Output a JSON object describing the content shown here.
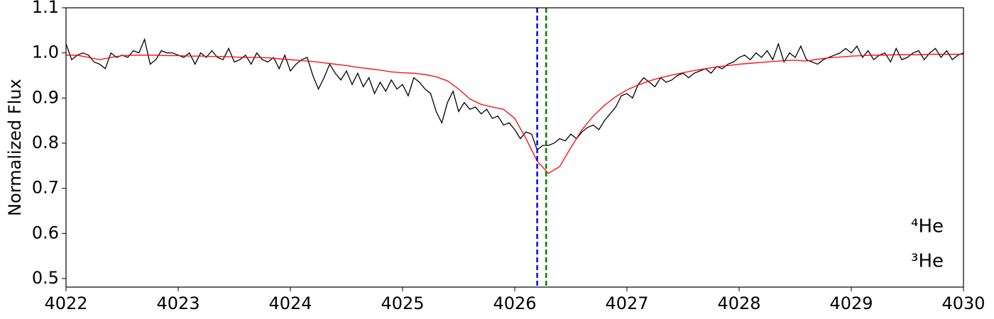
{
  "chart_data": {
    "type": "line",
    "ylabel": "Normalized Flux",
    "xlim": [
      4022,
      4030
    ],
    "ylim": [
      0.481,
      1.1
    ],
    "xticks": [
      4022,
      4023,
      4024,
      4025,
      4026,
      4027,
      4028,
      4029,
      4030
    ],
    "yticks": [
      0.5,
      0.6,
      0.7,
      0.8,
      0.9,
      {
        "value": 1,
        "label": "1.0"
      },
      1.1
    ],
    "grid": false,
    "series": [
      {
        "color": "#000000",
        "x": [
          4022,
          4022.05,
          4022.1,
          4022.15,
          4022.2,
          4022.25,
          4022.3,
          4022.35,
          4022.4,
          4022.45,
          4022.5,
          4022.55,
          4022.6,
          4022.65,
          4022.7,
          4022.75,
          4022.8,
          4022.85,
          4022.9,
          4022.95,
          4023,
          4023.05,
          4023.1,
          4023.15,
          4023.2,
          4023.25,
          4023.3,
          4023.35,
          4023.4,
          4023.45,
          4023.5,
          4023.55,
          4023.6,
          4023.65,
          4023.7,
          4023.75,
          4023.8,
          4023.85,
          4023.9,
          4023.95,
          4024,
          4024.05,
          4024.1,
          4024.15,
          4024.2,
          4024.25,
          4024.3,
          4024.35,
          4024.4,
          4024.45,
          4024.5,
          4024.55,
          4024.6,
          4024.65,
          4024.7,
          4024.75,
          4024.8,
          4024.85,
          4024.9,
          4024.95,
          4025,
          4025.05,
          4025.1,
          4025.15,
          4025.2,
          4025.25,
          4025.3,
          4025.35,
          4025.4,
          4025.45,
          4025.5,
          4025.55,
          4025.6,
          4025.65,
          4025.7,
          4025.75,
          4025.8,
          4025.85,
          4025.9,
          4025.95,
          4026,
          4026.05,
          4026.1,
          4026.15,
          4026.2,
          4026.25,
          4026.3,
          4026.35,
          4026.4,
          4026.45,
          4026.5,
          4026.55,
          4026.6,
          4026.65,
          4026.7,
          4026.75,
          4026.8,
          4026.85,
          4026.9,
          4026.95,
          4027,
          4027.05,
          4027.1,
          4027.15,
          4027.2,
          4027.25,
          4027.3,
          4027.35,
          4027.4,
          4027.45,
          4027.5,
          4027.55,
          4027.6,
          4027.65,
          4027.7,
          4027.75,
          4027.8,
          4027.85,
          4027.9,
          4027.95,
          4028,
          4028.05,
          4028.1,
          4028.15,
          4028.2,
          4028.25,
          4028.3,
          4028.35,
          4028.4,
          4028.45,
          4028.5,
          4028.55,
          4028.6,
          4028.65,
          4028.7,
          4028.75,
          4028.8,
          4028.85,
          4028.9,
          4028.95,
          4029,
          4029.05,
          4029.1,
          4029.15,
          4029.2,
          4029.25,
          4029.3,
          4029.35,
          4029.4,
          4029.45,
          4029.5,
          4029.55,
          4029.6,
          4029.65,
          4029.7,
          4029.75,
          4029.8,
          4029.85,
          4029.9,
          4029.95,
          4030
        ],
        "values": [
          1.02,
          0.985,
          0.995,
          1.0,
          0.995,
          0.98,
          0.975,
          0.965,
          1.0,
          0.99,
          0.995,
          0.99,
          1.005,
          1.0,
          1.03,
          0.975,
          0.985,
          1.005,
          1.0,
          1.0,
          0.995,
          0.99,
          1.0,
          0.975,
          1.0,
          0.99,
          1.005,
          0.99,
          0.985,
          1.01,
          0.98,
          0.985,
          0.995,
          0.975,
          1.0,
          0.985,
          0.98,
          0.99,
          0.965,
          0.995,
          0.96,
          0.975,
          0.985,
          0.99,
          0.95,
          0.92,
          0.945,
          0.975,
          0.955,
          0.94,
          0.96,
          0.93,
          0.955,
          0.925,
          0.945,
          0.91,
          0.935,
          0.915,
          0.94,
          0.92,
          0.93,
          0.905,
          0.945,
          0.935,
          0.92,
          0.91,
          0.87,
          0.845,
          0.89,
          0.915,
          0.87,
          0.89,
          0.875,
          0.88,
          0.865,
          0.875,
          0.855,
          0.86,
          0.84,
          0.845,
          0.83,
          0.81,
          0.825,
          0.82,
          0.785,
          0.795,
          0.795,
          0.8,
          0.81,
          0.805,
          0.82,
          0.81,
          0.825,
          0.835,
          0.84,
          0.83,
          0.85,
          0.865,
          0.88,
          0.905,
          0.91,
          0.9,
          0.93,
          0.945,
          0.935,
          0.925,
          0.945,
          0.935,
          0.94,
          0.95,
          0.955,
          0.945,
          0.955,
          0.96,
          0.965,
          0.955,
          0.97,
          0.965,
          0.975,
          0.98,
          0.99,
          0.995,
          0.985,
          1.0,
          0.99,
          1.005,
          0.985,
          1.02,
          0.98,
          1.0,
          0.99,
          1.015,
          0.985,
          0.98,
          0.975,
          0.985,
          0.99,
          0.995,
          1.0,
          1.01,
          1.0,
          1.015,
          0.99,
          1.005,
          0.985,
          0.995,
          1.0,
          0.98,
          1.01,
          0.985,
          0.99,
          1.0,
          1.005,
          0.985,
          1.0,
          1.01,
          0.99,
          1.005,
          0.985,
          0.995,
          1.0
        ]
      },
      {
        "color": "#ff0000",
        "x": [
          4022,
          4022.1,
          4022.2,
          4022.3,
          4022.4,
          4022.5,
          4022.6,
          4022.7,
          4022.8,
          4022.9,
          4023,
          4023.1,
          4023.2,
          4023.3,
          4023.4,
          4023.5,
          4023.6,
          4023.7,
          4023.8,
          4023.9,
          4024,
          4024.1,
          4024.2,
          4024.3,
          4024.4,
          4024.5,
          4024.6,
          4024.7,
          4024.8,
          4024.9,
          4025,
          4025.1,
          4025.2,
          4025.3,
          4025.4,
          4025.5,
          4025.6,
          4025.7,
          4025.8,
          4025.9,
          4026,
          4026.1,
          4026.2,
          4026.3,
          4026.4,
          4026.5,
          4026.6,
          4026.7,
          4026.8,
          4026.9,
          4027,
          4027.1,
          4027.2,
          4027.3,
          4027.4,
          4027.5,
          4027.6,
          4027.7,
          4027.8,
          4027.9,
          4028,
          4028.1,
          4028.2,
          4028.3,
          4028.4,
          4028.5,
          4028.6,
          4028.7,
          4028.8,
          4028.9,
          4029,
          4029.1,
          4029.2,
          4029.3,
          4029.4,
          4029.5,
          4029.6,
          4029.7,
          4029.8,
          4029.9,
          4030
        ],
        "values": [
          0.995,
          0.995,
          0.99,
          0.985,
          0.99,
          0.994,
          0.995,
          0.995,
          0.995,
          0.994,
          0.994,
          0.993,
          0.993,
          0.992,
          0.992,
          0.991,
          0.99,
          0.99,
          0.989,
          0.987,
          0.985,
          0.983,
          0.981,
          0.978,
          0.975,
          0.972,
          0.968,
          0.965,
          0.962,
          0.958,
          0.956,
          0.955,
          0.952,
          0.947,
          0.938,
          0.92,
          0.898,
          0.886,
          0.88,
          0.875,
          0.855,
          0.81,
          0.76,
          0.733,
          0.748,
          0.79,
          0.83,
          0.86,
          0.884,
          0.903,
          0.918,
          0.929,
          0.938,
          0.945,
          0.951,
          0.956,
          0.961,
          0.965,
          0.969,
          0.972,
          0.975,
          0.977,
          0.979,
          0.981,
          0.983,
          0.984,
          0.982,
          0.986,
          0.989,
          0.991,
          0.993,
          0.994,
          0.995,
          0.995,
          0.996,
          0.996,
          0.996,
          0.997,
          0.997,
          0.997,
          0.997
        ]
      }
    ],
    "vlines": [
      {
        "x": 4026.2,
        "color": "#0000ff"
      },
      {
        "x": 4026.28,
        "color": "#008000"
      }
    ],
    "annotations": [
      {
        "text": "⁴He",
        "color": "#0000ff"
      },
      {
        "text": "³He",
        "color": "#008000"
      }
    ]
  }
}
